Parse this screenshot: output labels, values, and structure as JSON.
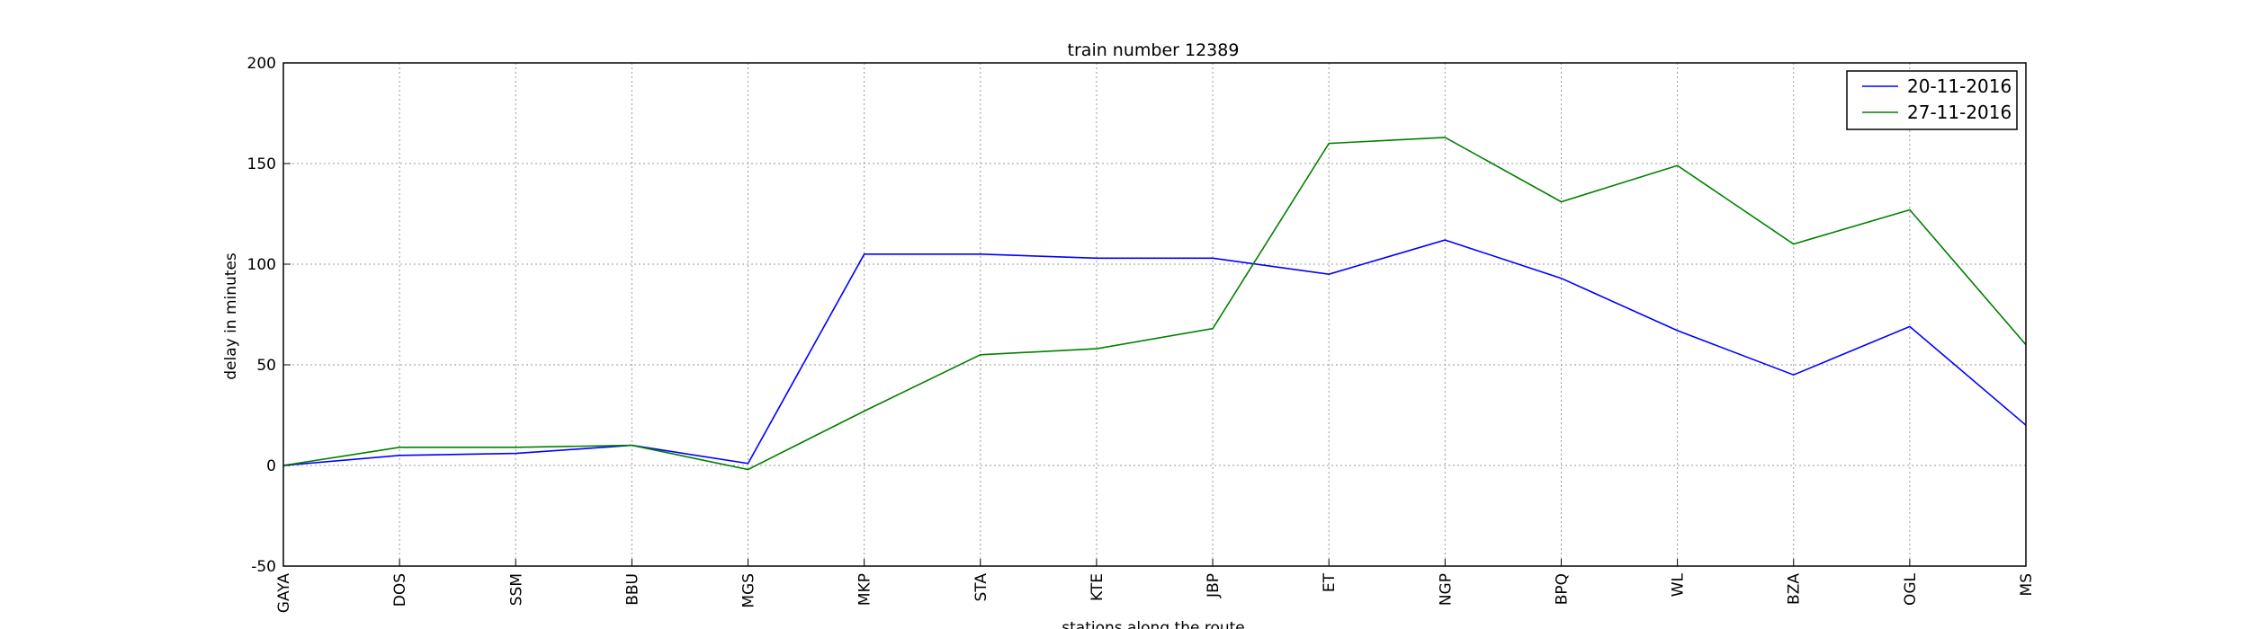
{
  "chart_data": {
    "type": "line",
    "title": "train number 12389",
    "xlabel": "stations along the route",
    "ylabel": "delay in minutes",
    "categories": [
      "GAYA",
      "DOS",
      "SSM",
      "BBU",
      "MGS",
      "MKP",
      "STA",
      "KTE",
      "JBP",
      "ET",
      "NGP",
      "BPQ",
      "WL",
      "BZA",
      "OGL",
      "MS"
    ],
    "ylim": [
      -50,
      200
    ],
    "yticks": [
      -50,
      0,
      50,
      100,
      150,
      200
    ],
    "grid": true,
    "legend_position": "top-right",
    "series": [
      {
        "name": "20-11-2016",
        "color": "#0000ff",
        "values": [
          0,
          5,
          6,
          10,
          1,
          105,
          105,
          103,
          103,
          95,
          112,
          93,
          67,
          45,
          69,
          20
        ]
      },
      {
        "name": "27-11-2016",
        "color": "#008000",
        "values": [
          0,
          9,
          9,
          10,
          -2,
          27,
          55,
          58,
          68,
          160,
          163,
          131,
          149,
          110,
          127,
          60
        ]
      }
    ]
  }
}
